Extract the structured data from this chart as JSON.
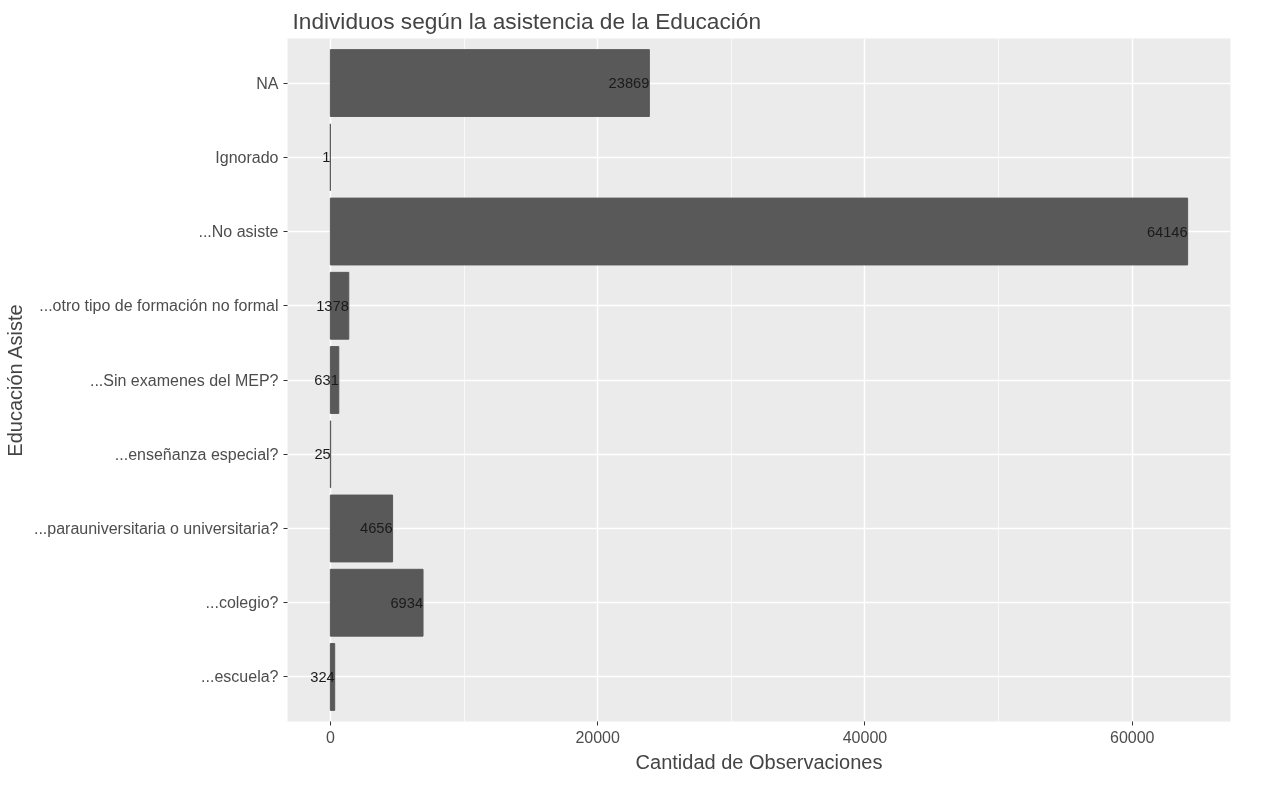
{
  "chart_data": {
    "type": "bar",
    "orientation": "horizontal",
    "title": "Individuos según la asistencia de la Educación",
    "xlabel": "Cantidad de Observaciones",
    "ylabel": "Educación Asiste",
    "categories": [
      "NA",
      "Ignorado",
      "...No asiste",
      "...otro tipo de formación no formal",
      "...Sin examenes del MEP?",
      "...enseñanza especial?",
      "...parauniversitaria o universitaria?",
      "...colegio?",
      "...escuela?"
    ],
    "values": [
      23869,
      1,
      64146,
      1378,
      631,
      25,
      4656,
      6934,
      324
    ],
    "color": "#595959",
    "data_labels": true,
    "grid": true,
    "xlim": [
      -3207,
      67353
    ],
    "xticks": [
      0,
      20000,
      40000,
      60000
    ]
  }
}
